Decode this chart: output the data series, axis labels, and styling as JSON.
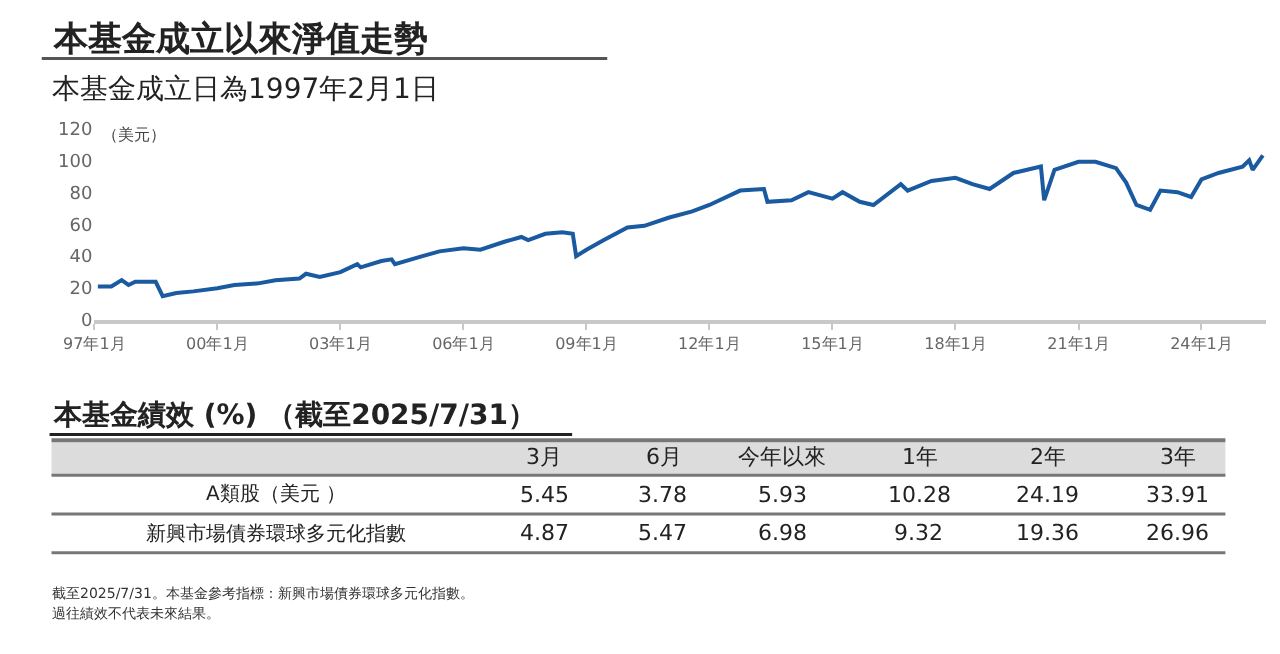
{
  "chart_data": [
    {
      "type": "line",
      "title": "本基金成立以來淨值走勢",
      "subtitle": "本基金成立日為1997年2月1日",
      "ylabel": "（美元）",
      "xlim": [
        "1997-01",
        "2025-08"
      ],
      "ylim": [
        0,
        120
      ],
      "yticks": [
        0,
        20,
        40,
        60,
        80,
        100,
        120
      ],
      "xticks": [
        {
          "value": "1997-01",
          "label": "97年1月"
        },
        {
          "value": "2000-01",
          "label": "00年1月"
        },
        {
          "value": "2003-01",
          "label": "03年1月"
        },
        {
          "value": "2006-01",
          "label": "06年1月"
        },
        {
          "value": "2009-01",
          "label": "09年1月"
        },
        {
          "value": "2012-01",
          "label": "12年1月"
        },
        {
          "value": "2015-01",
          "label": "15年1月"
        },
        {
          "value": "2018-01",
          "label": "18年1月"
        },
        {
          "value": "2021-01",
          "label": "21年1月"
        },
        {
          "value": "2024-01",
          "label": "24年1月"
        }
      ],
      "series": [
        {
          "color": "#1a5aa0",
          "x": [
            "1997-02",
            "1997-06",
            "1997-09",
            "1997-11",
            "1998-01",
            "1998-07",
            "1998-09",
            "1999-01",
            "1999-06",
            "2000-01",
            "2000-06",
            "2001-01",
            "2001-06",
            "2002-01",
            "2002-03",
            "2002-07",
            "2003-01",
            "2003-06",
            "2003-07",
            "2004-01",
            "2004-04",
            "2004-05",
            "2005-01",
            "2005-06",
            "2006-01",
            "2006-06",
            "2007-01",
            "2007-06",
            "2007-08",
            "2008-01",
            "2008-06",
            "2008-09",
            "2008-10",
            "2009-01",
            "2009-06",
            "2010-01",
            "2010-06",
            "2011-01",
            "2011-08",
            "2012-01",
            "2012-10",
            "2013-05",
            "2013-06",
            "2014-01",
            "2014-06",
            "2015-01",
            "2015-04",
            "2015-09",
            "2016-01",
            "2016-09",
            "2016-11",
            "2017-06",
            "2018-01",
            "2018-06",
            "2018-11",
            "2019-06",
            "2020-02",
            "2020-03",
            "2020-06",
            "2021-01",
            "2021-06",
            "2021-12",
            "2022-03",
            "2022-06",
            "2022-10",
            "2023-01",
            "2023-06",
            "2023-10",
            "2024-01",
            "2024-06",
            "2025-01",
            "2025-03",
            "2025-04",
            "2025-07"
          ],
          "values": [
            21,
            21,
            25,
            22,
            24,
            24,
            15,
            17,
            18,
            20,
            22,
            23,
            25,
            26,
            29,
            27,
            30,
            35,
            33,
            37,
            38,
            35,
            40,
            43,
            45,
            44,
            49,
            52,
            50,
            54,
            55,
            54,
            40,
            44,
            50,
            58,
            59,
            64,
            68,
            72,
            81,
            82,
            74,
            75,
            80,
            76,
            80,
            74,
            72,
            85,
            81,
            87,
            89,
            85,
            82,
            92,
            96,
            75,
            94,
            99,
            99,
            95,
            86,
            72,
            69,
            81,
            80,
            77,
            88,
            92,
            96,
            100,
            94,
            103
          ]
        }
      ]
    },
    {
      "type": "other",
      "title": "本基金績效 (%) （截至2025/7/31）",
      "categories": [
        "3月",
        "6月",
        "今年以來",
        "1年",
        "2年",
        "3年"
      ],
      "data_labels": true,
      "series": [
        {
          "name": "A類股（美元 ）",
          "values": [
            5.45,
            3.78,
            5.93,
            10.28,
            24.19,
            33.91
          ]
        },
        {
          "name": "新興市場債券環球多元化指數",
          "values": [
            4.87,
            5.47,
            6.98,
            9.32,
            19.36,
            26.96
          ]
        }
      ],
      "annotations": [
        "截至2025/7/31。本基金參考指標：新興市場債券環球多元化指數。",
        "過往績效不代表未來結果。"
      ]
    }
  ]
}
